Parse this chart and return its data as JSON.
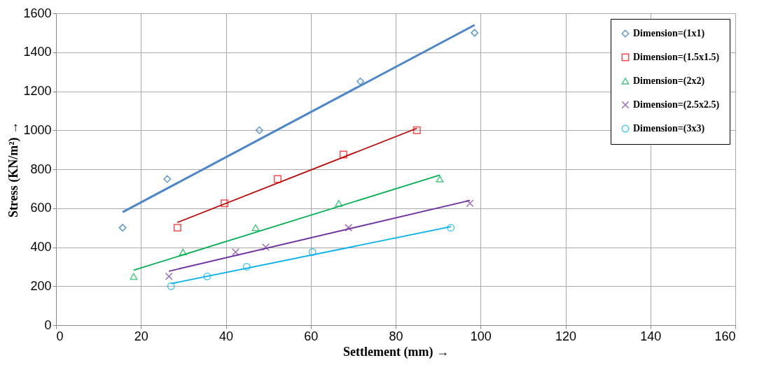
{
  "chart_data": {
    "type": "scatter",
    "xlabel": "Settlement (mm) →",
    "ylabel": "Stress (KN/m²) →",
    "xlim": [
      0,
      160
    ],
    "xticks": [
      0,
      20,
      40,
      60,
      80,
      100,
      120,
      140,
      160
    ],
    "ylim": [
      0,
      1600
    ],
    "yticks": [
      0,
      200,
      400,
      600,
      800,
      1000,
      1200,
      1400,
      1600
    ],
    "grid": true,
    "legend": "top right",
    "series": [
      {
        "name": "Dimension=(1x1)",
        "color": "#1f6fbf",
        "marker": "diamond",
        "x": [
          15.7,
          26.2,
          47.9,
          71.7,
          98.6
        ],
        "values": [
          500,
          750,
          1000,
          1250,
          1500
        ]
      },
      {
        "name": "Dimension=(1.5x1.5)",
        "color": "#ff0000",
        "marker": "square",
        "x": [
          28.6,
          39.7,
          52.2,
          67.7,
          85.0
        ],
        "values": [
          500,
          625,
          750,
          875,
          1000
        ]
      },
      {
        "name": "Dimension=(2x2)",
        "color": "#00b050",
        "marker": "triangle",
        "x": [
          18.3,
          29.9,
          47.0,
          66.6,
          90.4
        ],
        "values": [
          250,
          375,
          500,
          625,
          750
        ]
      },
      {
        "name": "Dimension=(2.5x2.5)",
        "color": "#7030a0",
        "marker": "cross",
        "x": [
          26.6,
          42.3,
          49.4,
          68.9,
          97.5
        ],
        "values": [
          250,
          375,
          400,
          500,
          625
        ]
      },
      {
        "name": "Dimension=(3x3)",
        "color": "#00b0f0",
        "marker": "circle",
        "x": [
          27.1,
          35.6,
          44.9,
          60.4,
          93.0
        ],
        "values": [
          200,
          250,
          300,
          375,
          500
        ]
      },
      {
        "type": "line",
        "color": "#4a86c8",
        "marker": "none",
        "x": [
          15.7,
          98.6
        ],
        "values": [
          580,
          1540
        ]
      },
      {
        "type": "line",
        "color": "#c00000",
        "marker": "none",
        "x": [
          28.6,
          85.0
        ],
        "values": [
          527,
          1010
        ]
      },
      {
        "type": "line",
        "color": "#00b050",
        "marker": "none",
        "x": [
          18.3,
          90.4
        ],
        "values": [
          282,
          770
        ]
      },
      {
        "type": "line",
        "color": "#7030a0",
        "marker": "none",
        "x": [
          26.6,
          97.5
        ],
        "values": [
          277,
          640
        ]
      },
      {
        "type": "line",
        "color": "#00b0f0",
        "marker": "none",
        "x": [
          27.1,
          93.0
        ],
        "values": [
          213,
          505
        ]
      }
    ]
  }
}
